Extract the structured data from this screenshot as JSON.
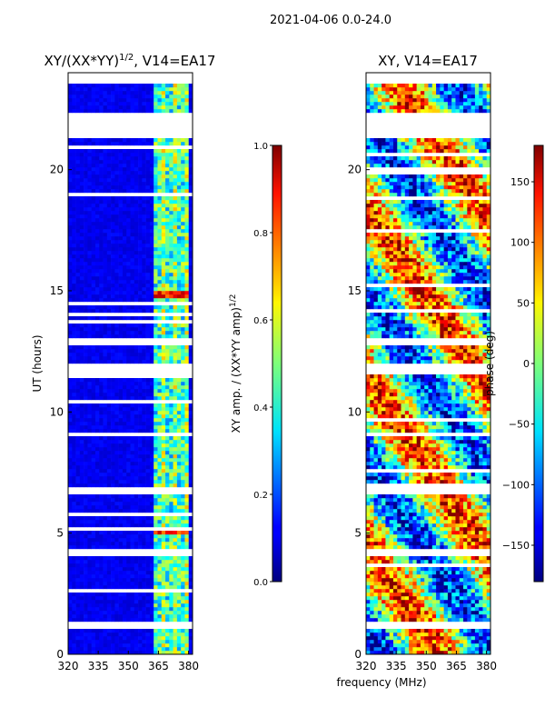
{
  "chart_data": [
    {
      "type": "heatmap",
      "title": "XY/(XX*YY)^1/2, V14=EA17",
      "title_main": "XY/(XX*YY)",
      "title_exp": "1/2",
      "title_tail": ", V14=EA17",
      "ylabel": "UT (hours)",
      "xlabel": "",
      "xlim": [
        320,
        382
      ],
      "ylim": [
        0,
        24
      ],
      "x_ticks": [
        320,
        335,
        350,
        365,
        380
      ],
      "y_ticks": [
        0,
        5,
        10,
        15,
        20
      ],
      "value_range": [
        0.0,
        1.0
      ],
      "colorbar": {
        "label": "XY amp. / (XX*YY amp)^1/2",
        "label_main": "XY amp. / (XX*YY amp)",
        "label_exp": "1/2",
        "ticks": [
          "0.0",
          "0.2",
          "0.4",
          "0.6",
          "0.8",
          "1.0"
        ],
        "tick_values": [
          0.0,
          0.2,
          0.4,
          0.6,
          0.8,
          1.0
        ]
      }
    },
    {
      "type": "heatmap",
      "title": "XY, V14=EA17",
      "ylabel": "",
      "xlabel": "frequency (MHz)",
      "xlim": [
        320,
        382
      ],
      "ylim": [
        0,
        24
      ],
      "x_ticks": [
        320,
        335,
        350,
        365,
        380
      ],
      "y_ticks": [
        0,
        5,
        10,
        15,
        20
      ],
      "value_range": [
        -180,
        180
      ],
      "colorbar": {
        "label": "phase (deg)",
        "ticks": [
          "−150",
          "−100",
          "−50",
          "0",
          "50",
          "100",
          "150"
        ],
        "tick_values": [
          -150,
          -100,
          -50,
          0,
          50,
          100,
          150
        ]
      }
    }
  ],
  "suptitle": "2021-04-06 0.0-24.0",
  "data_gaps_hours": [
    [
      21.3,
      22.3
    ],
    [
      13.0,
      12.7
    ],
    [
      11.6,
      12.0
    ],
    [
      6.6,
      6.9
    ],
    [
      9.0,
      9.2
    ],
    [
      1.1,
      1.3
    ],
    [
      4.1,
      4.3
    ]
  ]
}
